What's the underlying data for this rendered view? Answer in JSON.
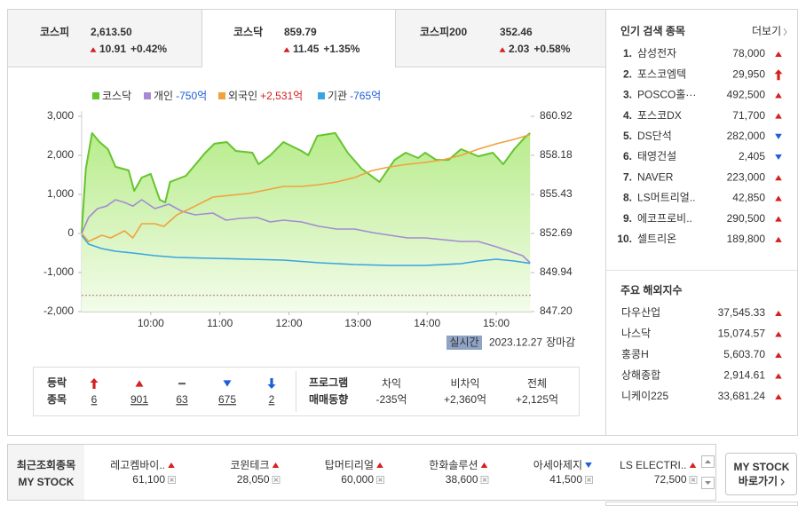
{
  "tabs": [
    {
      "name": "코스피",
      "value": "2,613.50",
      "change": "10.91",
      "rate": "+0.42%"
    },
    {
      "name": "코스닥",
      "value": "859.79",
      "change": "11.45",
      "rate": "+1.35%",
      "active": true
    },
    {
      "name": "코스피200",
      "value": "352.46",
      "change": "2.03",
      "rate": "+0.58%"
    }
  ],
  "chart_data": {
    "type": "line",
    "xlim": [
      9,
      15.5
    ],
    "xticks": [
      {
        "value": 10,
        "label": "10:00"
      },
      {
        "value": 11,
        "label": "11:00"
      },
      {
        "value": 12,
        "label": "12:00"
      },
      {
        "value": 13,
        "label": "13:00"
      },
      {
        "value": 14,
        "label": "14:00"
      },
      {
        "value": 15,
        "label": "15:00"
      }
    ],
    "ylim": [
      -2000,
      3000
    ],
    "yticks": [
      {
        "value": 3000,
        "label": "3,000"
      },
      {
        "value": 2000,
        "label": "2,000"
      },
      {
        "value": 1000,
        "label": "1,000"
      },
      0,
      {
        "value": -1000,
        "label": "-1,000"
      },
      {
        "value": -2000,
        "label": "-2,000"
      }
    ],
    "y2lim": [
      847.2,
      860.92
    ],
    "y2ticks": [
      860.92,
      858.18,
      855.43,
      852.69,
      849.94,
      {
        "value": 847.2,
        "label": "847.20"
      }
    ],
    "grid": false,
    "previous_close": 848.34,
    "series": [
      {
        "name": "코스닥",
        "color": "#66c42e",
        "axis": "y2",
        "area": true,
        "x": [
          9.0,
          9.06,
          9.15,
          9.26,
          9.38,
          9.49,
          9.68,
          9.76,
          9.87,
          10.0,
          10.13,
          10.21,
          10.28,
          10.51,
          10.79,
          10.92,
          11.1,
          11.23,
          11.47,
          11.56,
          11.73,
          11.92,
          12.18,
          12.28,
          12.41,
          12.67,
          12.85,
          13.05,
          13.31,
          13.53,
          13.69,
          13.87,
          13.97,
          14.13,
          14.31,
          14.49,
          14.74,
          14.95,
          15.1,
          15.26,
          15.41,
          15.49
        ],
        "values": [
          852.75,
          857.24,
          859.74,
          859.11,
          858.61,
          857.37,
          857.12,
          855.68,
          856.62,
          856.87,
          855.06,
          854.87,
          856.31,
          856.74,
          858.36,
          858.99,
          859.11,
          858.49,
          858.36,
          857.55,
          858.18,
          859.11,
          858.49,
          858.18,
          859.55,
          859.74,
          858.36,
          857.24,
          856.31,
          857.86,
          858.36,
          857.99,
          858.36,
          857.86,
          857.86,
          858.61,
          858.11,
          858.36,
          857.55,
          858.61,
          859.42,
          859.74
        ]
      },
      {
        "name": "개인",
        "total": "-750억",
        "total_color": "#1e5ed6",
        "color": "#a48bd2",
        "x": [
          9.0,
          9.1,
          9.23,
          9.36,
          9.49,
          9.62,
          9.74,
          9.87,
          10.06,
          10.26,
          10.45,
          10.64,
          10.9,
          11.09,
          11.29,
          11.54,
          11.73,
          11.92,
          12.18,
          12.44,
          12.69,
          12.95,
          13.21,
          13.46,
          13.72,
          13.97,
          14.23,
          14.49,
          14.74,
          15.0,
          15.19,
          15.38,
          15.49
        ],
        "values": [
          0,
          409,
          636,
          700,
          863,
          795,
          700,
          863,
          636,
          750,
          568,
          477,
          523,
          341,
          386,
          409,
          295,
          341,
          295,
          182,
          114,
          114,
          23,
          -45,
          -114,
          -114,
          -159,
          -205,
          -205,
          -341,
          -455,
          -568,
          -750
        ]
      },
      {
        "name": "외국인",
        "total": "+2,531억",
        "total_color": "#d61f1f",
        "color": "#f0a23c",
        "x": [
          9.0,
          9.1,
          9.29,
          9.42,
          9.62,
          9.74,
          9.87,
          10.06,
          10.19,
          10.38,
          10.64,
          10.9,
          11.15,
          11.41,
          11.67,
          11.92,
          12.18,
          12.44,
          12.69,
          12.95,
          13.21,
          13.46,
          13.72,
          13.97,
          14.23,
          14.49,
          14.74,
          15.0,
          15.26,
          15.49
        ],
        "values": [
          0,
          -205,
          -45,
          -114,
          68,
          -114,
          250,
          250,
          182,
          477,
          700,
          932,
          977,
          1023,
          1114,
          1205,
          1205,
          1250,
          1318,
          1432,
          1614,
          1705,
          1773,
          1818,
          1886,
          2000,
          2159,
          2295,
          2409,
          2531
        ]
      },
      {
        "name": "기관",
        "total": "-765억",
        "total_color": "#1e5ed6",
        "color": "#3aa3e3",
        "x": [
          9.0,
          9.1,
          9.29,
          9.49,
          9.74,
          10.06,
          10.38,
          10.9,
          11.41,
          11.92,
          12.44,
          12.95,
          13.46,
          13.97,
          14.49,
          14.74,
          15.0,
          15.26,
          15.49
        ],
        "values": [
          -45,
          -273,
          -386,
          -455,
          -500,
          -568,
          -614,
          -636,
          -659,
          -682,
          -750,
          -795,
          -818,
          -818,
          -773,
          -705,
          -659,
          -705,
          -765
        ]
      }
    ]
  },
  "status": {
    "badge": "실시간",
    "date": "2023.12.27",
    "state": "장마감"
  },
  "breadth": {
    "label1": "등락",
    "label2": "종목",
    "items": [
      {
        "kind": "upper",
        "count": "6"
      },
      {
        "kind": "up",
        "count": "901"
      },
      {
        "kind": "flat",
        "count": "63"
      },
      {
        "kind": "down",
        "count": "675"
      },
      {
        "kind": "lower",
        "count": "2"
      }
    ]
  },
  "program": {
    "label1": "프로그램",
    "label2": "매매동향",
    "columns": [
      {
        "name": "차익",
        "value": "-235억"
      },
      {
        "name": "비차익",
        "value": "+2,360억"
      },
      {
        "name": "전체",
        "value": "+2,125억"
      }
    ]
  },
  "popular": {
    "title": "인기 검색 종목",
    "more": "더보기",
    "items": [
      {
        "rank": "1.",
        "name": "삼성전자",
        "price": "78,000",
        "direction": "up"
      },
      {
        "rank": "2.",
        "name": "포스코엠텍",
        "price": "29,950",
        "direction": "upper"
      },
      {
        "rank": "3.",
        "name": "POSCO홀···",
        "price": "492,500",
        "direction": "up"
      },
      {
        "rank": "4.",
        "name": "포스코DX",
        "price": "71,700",
        "direction": "up"
      },
      {
        "rank": "5.",
        "name": "DS단석",
        "price": "282,000",
        "direction": "down"
      },
      {
        "rank": "6.",
        "name": "태영건설",
        "price": "2,405",
        "direction": "down"
      },
      {
        "rank": "7.",
        "name": "NAVER",
        "price": "223,000",
        "direction": "up"
      },
      {
        "rank": "8.",
        "name": "LS머트리얼..",
        "price": "42,850",
        "direction": "up"
      },
      {
        "rank": "9.",
        "name": "에코프로비..",
        "price": "290,500",
        "direction": "up"
      },
      {
        "rank": "10.",
        "name": "셀트리온",
        "price": "189,800",
        "direction": "up"
      }
    ]
  },
  "overseas": {
    "title": "주요 해외지수",
    "items": [
      {
        "name": "다우산업",
        "value": "37,545.33",
        "direction": "up"
      },
      {
        "name": "나스닥",
        "value": "15,074.57",
        "direction": "up"
      },
      {
        "name": "홍콩H",
        "value": "5,603.70",
        "direction": "up"
      },
      {
        "name": "상해종합",
        "value": "2,914.61",
        "direction": "up"
      },
      {
        "name": "니케이225",
        "value": "33,681.24",
        "direction": "up"
      }
    ]
  },
  "recent": {
    "title": "최근조회종목",
    "subtitle": "MY STOCK",
    "items": [
      {
        "name": "레고켐바이..",
        "price": "61,100",
        "direction": "up"
      },
      {
        "name": "코윈테크",
        "price": "28,050",
        "direction": "up"
      },
      {
        "name": "탑머티리얼",
        "price": "60,000",
        "direction": "up"
      },
      {
        "name": "한화솔루션",
        "price": "38,600",
        "direction": "up"
      },
      {
        "name": "아세아제지",
        "price": "41,500",
        "direction": "down"
      },
      {
        "name": "LS ELECTRI..",
        "price": "72,500",
        "direction": "up"
      }
    ],
    "button1": "MY STOCK",
    "button2": "바로가기"
  }
}
